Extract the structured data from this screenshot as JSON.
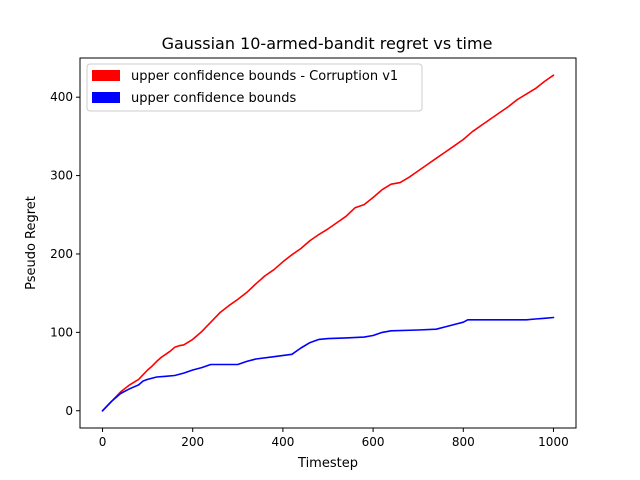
{
  "chart_data": {
    "type": "line",
    "title": "Gaussian 10-armed-bandit regret vs time",
    "xlabel": "Timestep",
    "ylabel": "Pseudo Regret",
    "xlim": [
      -50,
      1050
    ],
    "ylim": [
      -22,
      450
    ],
    "xticks": [
      0,
      200,
      400,
      600,
      800,
      1000
    ],
    "yticks": [
      0,
      100,
      200,
      300,
      400
    ],
    "grid": false,
    "legend_position": "upper-left",
    "series": [
      {
        "name": "upper confidence bounds - Corruption v1",
        "color": "#ff0000",
        "x": [
          0,
          20,
          40,
          60,
          80,
          90,
          100,
          110,
          120,
          130,
          140,
          150,
          160,
          170,
          180,
          200,
          220,
          240,
          260,
          280,
          300,
          320,
          340,
          360,
          380,
          400,
          420,
          440,
          460,
          480,
          500,
          520,
          540,
          560,
          580,
          600,
          620,
          640,
          660,
          680,
          700,
          720,
          740,
          760,
          780,
          800,
          820,
          840,
          860,
          880,
          900,
          920,
          940,
          960,
          980,
          1000
        ],
        "values": [
          0,
          12,
          24,
          33,
          40,
          46,
          52,
          57,
          63,
          68,
          72,
          76,
          81,
          83,
          84,
          91,
          101,
          113,
          125,
          134,
          142,
          151,
          162,
          172,
          180,
          190,
          199,
          207,
          217,
          225,
          232,
          240,
          248,
          259,
          263,
          272,
          282,
          289,
          291,
          298,
          306,
          314,
          322,
          330,
          338,
          346,
          356,
          364,
          372,
          380,
          388,
          397,
          404,
          411,
          420,
          428
        ]
      },
      {
        "name": "upper confidence bounds",
        "color": "#0000ff",
        "x": [
          0,
          20,
          40,
          60,
          80,
          90,
          100,
          120,
          140,
          160,
          180,
          200,
          220,
          235,
          240,
          300,
          320,
          340,
          380,
          420,
          440,
          460,
          480,
          500,
          540,
          580,
          600,
          620,
          640,
          700,
          740,
          760,
          780,
          800,
          810,
          860,
          900,
          940,
          960,
          980,
          1000
        ],
        "values": [
          0,
          12,
          22,
          28,
          33,
          38,
          40,
          43,
          44,
          45,
          48,
          52,
          55,
          58,
          59,
          59,
          63,
          66,
          69,
          72,
          80,
          87,
          91,
          92,
          93,
          94,
          96,
          100,
          102,
          103,
          104,
          107,
          110,
          113,
          116,
          116,
          116,
          116,
          117,
          118,
          119
        ]
      }
    ]
  }
}
